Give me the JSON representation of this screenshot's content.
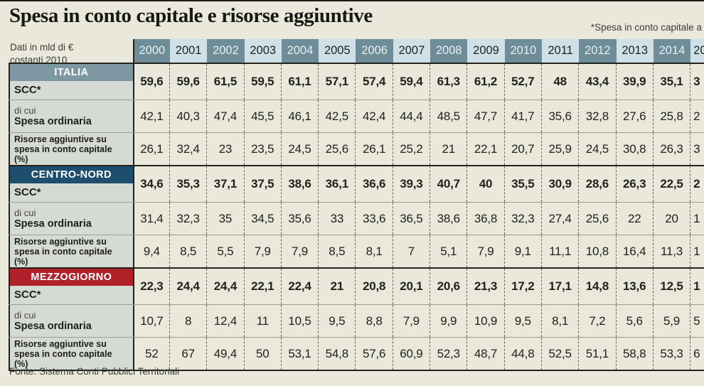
{
  "title": "Spesa in conto capitale e risorse aggiuntive",
  "note": "*Spesa in conto capitale a",
  "source": "Fonte: Sistema Conti Pubblici Territoriali",
  "colors": {
    "background": "#e9e8db",
    "year_cell_dark": "#6e8d98",
    "year_cell_light": "#cfe1e6",
    "label_column": "#d5dbd4",
    "italia_accent": "#7e98a2",
    "centro_nord_accent": "#1e4e6d",
    "mezzogiorno_accent": "#b0212a"
  },
  "chart_data": {
    "type": "table",
    "title": "Spesa in conto capitale e risorse aggiuntive",
    "unit": "Dati in mld di € costanti 2010",
    "columns": [
      "2000",
      "2001",
      "2002",
      "2003",
      "2004",
      "2005",
      "2006",
      "2007",
      "2008",
      "2009",
      "2010",
      "2011",
      "2012",
      "2013",
      "2014",
      "20"
    ],
    "sections": [
      {
        "name": "ITALIA",
        "accent": "#7e98a2",
        "rows": [
          {
            "label": "SCC*",
            "values": [
              "59,6",
              "59,6",
              "61,5",
              "59,5",
              "61,1",
              "57,1",
              "57,4",
              "59,4",
              "61,3",
              "61,2",
              "52,7",
              "48",
              "43,4",
              "39,9",
              "35,1",
              "3"
            ]
          },
          {
            "label_top": "di cui",
            "label": "Spesa ordinaria",
            "values": [
              "42,1",
              "40,3",
              "47,4",
              "45,5",
              "46,1",
              "42,5",
              "42,4",
              "44,4",
              "48,5",
              "47,7",
              "41,7",
              "35,6",
              "32,8",
              "27,6",
              "25,8",
              "2"
            ]
          },
          {
            "label": "Risorse aggiuntive su spesa in conto capitale (%)",
            "values": [
              "26,1",
              "32,4",
              "23",
              "23,5",
              "24,5",
              "25,6",
              "26,1",
              "25,2",
              "21",
              "22,1",
              "20,7",
              "25,9",
              "24,5",
              "30,8",
              "26,3",
              "3"
            ]
          }
        ]
      },
      {
        "name": "CENTRO-NORD",
        "accent": "#1e4e6d",
        "rows": [
          {
            "label": "SCC*",
            "values": [
              "34,6",
              "35,3",
              "37,1",
              "37,5",
              "38,6",
              "36,1",
              "36,6",
              "39,3",
              "40,7",
              "40",
              "35,5",
              "30,9",
              "28,6",
              "26,3",
              "22,5",
              "2"
            ]
          },
          {
            "label_top": "di cui",
            "label": "Spesa ordinaria",
            "values": [
              "31,4",
              "32,3",
              "35",
              "34,5",
              "35,6",
              "33",
              "33,6",
              "36,5",
              "38,6",
              "36,8",
              "32,3",
              "27,4",
              "25,6",
              "22",
              "20",
              "1"
            ]
          },
          {
            "label": "Risorse aggiuntive su spesa in conto capitale (%)",
            "values": [
              "9,4",
              "8,5",
              "5,5",
              "7,9",
              "7,9",
              "8,5",
              "8,1",
              "7",
              "5,1",
              "7,9",
              "9,1",
              "11,1",
              "10,8",
              "16,4",
              "11,3",
              "1"
            ]
          }
        ]
      },
      {
        "name": "MEZZOGIORNO",
        "accent": "#b0212a",
        "rows": [
          {
            "label": "SCC*",
            "values": [
              "22,3",
              "24,4",
              "24,4",
              "22,1",
              "22,4",
              "21",
              "20,8",
              "20,1",
              "20,6",
              "21,3",
              "17,2",
              "17,1",
              "14,8",
              "13,6",
              "12,5",
              "1"
            ]
          },
          {
            "label_top": "di cui",
            "label": "Spesa ordinaria",
            "values": [
              "10,7",
              "8",
              "12,4",
              "11",
              "10,5",
              "9,5",
              "8,8",
              "7,9",
              "9,9",
              "10,9",
              "9,5",
              "8,1",
              "7,2",
              "5,6",
              "5,9",
              "5"
            ]
          },
          {
            "label": "Risorse aggiuntive su spesa in conto capitale (%)",
            "values": [
              "52",
              "67",
              "49,4",
              "50",
              "53,1",
              "54,8",
              "57,6",
              "60,9",
              "52,3",
              "48,7",
              "44,8",
              "52,5",
              "51,1",
              "58,8",
              "53,3",
              "6"
            ]
          }
        ]
      }
    ]
  }
}
